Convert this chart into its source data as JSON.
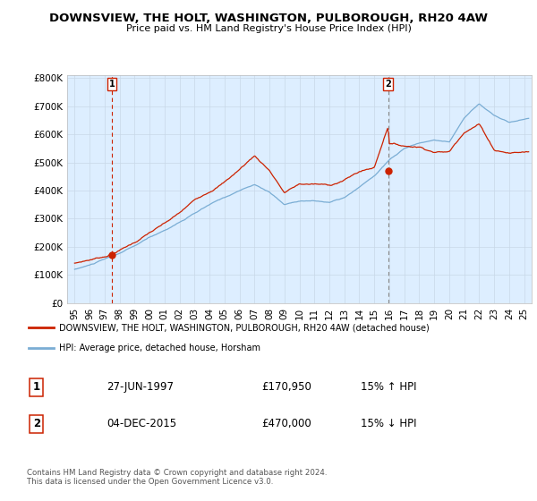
{
  "title": "DOWNSVIEW, THE HOLT, WASHINGTON, PULBOROUGH, RH20 4AW",
  "subtitle": "Price paid vs. HM Land Registry's House Price Index (HPI)",
  "ylabel_ticks": [
    "£0",
    "£100K",
    "£200K",
    "£300K",
    "£400K",
    "£500K",
    "£600K",
    "£700K",
    "£800K"
  ],
  "ytick_values": [
    0,
    100000,
    200000,
    300000,
    400000,
    500000,
    600000,
    700000,
    800000
  ],
  "ylim": [
    0,
    810000
  ],
  "xlim_start": 1994.5,
  "xlim_end": 2025.5,
  "hpi_color": "#7aadd4",
  "price_color": "#cc2200",
  "sale1_dashed_color": "#cc2200",
  "sale2_dashed_color": "#888888",
  "plot_bg": "#ddeeff",
  "bg_color": "#ffffff",
  "legend_label_red": "DOWNSVIEW, THE HOLT, WASHINGTON, PULBOROUGH, RH20 4AW (detached house)",
  "legend_label_blue": "HPI: Average price, detached house, Horsham",
  "sale1_date": "27-JUN-1997",
  "sale1_price": "£170,950",
  "sale1_hpi": "15% ↑ HPI",
  "sale1_year": 1997.49,
  "sale1_value": 170950,
  "sale2_date": "04-DEC-2015",
  "sale2_price": "£470,000",
  "sale2_hpi": "15% ↓ HPI",
  "sale2_year": 2015.92,
  "sale2_value": 470000,
  "footer": "Contains HM Land Registry data © Crown copyright and database right 2024.\nThis data is licensed under the Open Government Licence v3.0.",
  "xtick_years": [
    1995,
    1996,
    1997,
    1998,
    1999,
    2000,
    2001,
    2002,
    2003,
    2004,
    2005,
    2006,
    2007,
    2008,
    2009,
    2010,
    2011,
    2012,
    2013,
    2014,
    2015,
    2016,
    2017,
    2018,
    2019,
    2020,
    2021,
    2022,
    2023,
    2024,
    2025
  ]
}
